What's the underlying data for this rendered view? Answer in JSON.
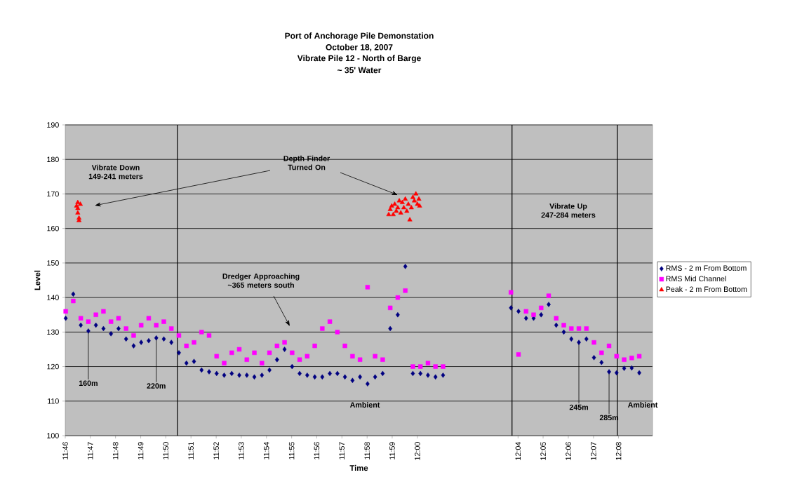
{
  "chart_data": {
    "type": "scatter",
    "title": "Port of Anchorage Pile Demonstation",
    "subtitle": "October 18, 2007",
    "xlabel": "Time",
    "ylabel": "Level",
    "x": [
      11.767,
      11.772,
      11.777,
      11.782,
      11.787,
      11.792,
      11.797,
      11.802,
      11.807,
      11.812,
      11.817,
      11.822,
      11.827,
      11.832,
      11.837,
      11.842,
      11.847,
      11.852,
      11.857,
      11.862,
      11.867,
      11.872,
      11.877,
      11.882,
      11.887,
      11.892,
      11.897,
      11.902,
      11.907,
      11.912,
      11.917,
      11.922,
      11.927,
      11.932,
      11.937,
      11.942,
      11.947,
      11.952,
      11.957,
      11.962,
      11.967,
      11.972,
      11.977,
      11.982,
      11.987,
      11.992,
      11.997,
      12.002,
      12.007,
      12.012,
      12.017,
      12.062,
      12.067,
      12.072,
      12.077,
      12.082,
      12.087,
      12.092,
      12.097,
      12.102,
      12.107,
      12.112,
      12.117,
      12.122,
      12.127,
      12.132,
      12.137,
      12.142,
      12.147
    ],
    "series": [
      {
        "name": "RMS - 2 m From Bottom",
        "color": "#000080",
        "marker": "diamond",
        "values": [
          134,
          141,
          132,
          130.3,
          132,
          131,
          129.5,
          131,
          128,
          126,
          127,
          127.5,
          128.3,
          128,
          127,
          124,
          121,
          121.5,
          119,
          118.5,
          118,
          117.5,
          118,
          117.5,
          117.5,
          117,
          117.5,
          119,
          122,
          125,
          120,
          118,
          117.5,
          117,
          117,
          118,
          118,
          117,
          116,
          117,
          115,
          117,
          118,
          131,
          135,
          149,
          118,
          118,
          117.5,
          117,
          117.5,
          137,
          136,
          134,
          134,
          135,
          138,
          132,
          130,
          128,
          127,
          128,
          122.6,
          121.2,
          118.5,
          118.2,
          119.5,
          119.6,
          118.2
        ]
      },
      {
        "name": "RMS Mid Channel",
        "color": "#ff00ff",
        "marker": "square",
        "values": [
          136,
          139,
          134,
          133,
          135,
          136,
          133,
          134,
          131,
          129,
          132,
          134,
          132,
          133,
          131,
          129,
          126,
          127,
          130,
          129,
          123,
          121,
          124,
          125,
          122,
          124,
          121,
          124,
          126,
          127,
          124,
          122,
          123,
          126,
          131,
          133,
          130,
          126,
          123,
          122,
          143,
          123,
          122,
          137,
          140,
          142,
          120,
          120,
          121,
          120,
          120,
          141.5,
          123.5,
          136,
          135,
          137,
          140.5,
          134,
          132,
          131,
          131,
          131,
          127,
          124,
          126,
          123,
          122,
          122.5,
          123
        ]
      },
      {
        "name": "Peak - 2 m From Bottom",
        "color": "#ff0000",
        "marker": "triangle",
        "x": [
          11.7742,
          11.775,
          11.775,
          11.7758,
          11.7758,
          11.7767,
          11.775,
          11.981,
          11.982,
          11.983,
          11.984,
          11.985,
          11.986,
          11.987,
          11.988,
          11.989,
          11.99,
          11.991,
          11.992,
          11.993,
          11.994,
          11.995,
          11.996,
          11.997,
          11.998,
          11.999,
          12.0,
          12.001,
          12.0015
        ],
        "values": [
          166.5,
          167.5,
          164.5,
          163,
          162.3,
          167,
          165.8,
          164,
          165.5,
          166.5,
          164,
          167,
          165,
          166,
          168,
          164.5,
          167.5,
          166,
          168.5,
          165,
          167,
          162.5,
          166,
          169,
          168,
          170,
          167,
          168.5,
          166.5
        ]
      }
    ],
    "xlim": [
      11.7667,
      12.1558
    ],
    "xticks": [
      {
        "value": 11.7667,
        "label": "11:46"
      },
      {
        "value": 11.7833,
        "label": "11:47"
      },
      {
        "value": 11.8,
        "label": "11:48"
      },
      {
        "value": 11.8167,
        "label": "11:49"
      },
      {
        "value": 11.8333,
        "label": "11:50"
      },
      {
        "value": 11.85,
        "label": "11:51"
      },
      {
        "value": 11.8667,
        "label": "11:52"
      },
      {
        "value": 11.8833,
        "label": "11:53"
      },
      {
        "value": 11.9,
        "label": "11:54"
      },
      {
        "value": 11.9167,
        "label": "11:55"
      },
      {
        "value": 11.9333,
        "label": "11:56"
      },
      {
        "value": 11.95,
        "label": "11:57"
      },
      {
        "value": 11.9667,
        "label": "11:58"
      },
      {
        "value": 11.9833,
        "label": "11:59"
      },
      {
        "value": 12.0,
        "label": "12:00"
      },
      {
        "value": 12.0667,
        "label": "12:04"
      },
      {
        "value": 12.0833,
        "label": "12:05"
      },
      {
        "value": 12.1,
        "label": "12:06"
      },
      {
        "value": 12.1167,
        "label": "12:07"
      },
      {
        "value": 12.1333,
        "label": "12:08"
      }
    ],
    "ylim": [
      100,
      190
    ],
    "yticks": [
      100,
      110,
      120,
      130,
      140,
      150,
      160,
      170,
      180,
      190
    ],
    "grid": "y",
    "legend": "right",
    "ref_lines": [
      {
        "axis": "x",
        "value": 11.841,
        "color": "#000000"
      },
      {
        "axis": "x",
        "value": 12.0627,
        "color": "#000000"
      },
      {
        "axis": "x",
        "value": 12.1325,
        "color": "#000000"
      }
    ],
    "annotations": [
      "Vibrate Down 149-241 meters",
      "Depth Finder Turned On",
      "Dredger Approaching ~365 meters south",
      {
        "text": "160m",
        "x": 11.782,
        "y": 130.3
      },
      {
        "text": "220m",
        "x": 11.827,
        "y": 128.3
      },
      {
        "text": "245m",
        "x": 12.107,
        "y": 127
      },
      {
        "text": "285m",
        "x": 12.127,
        "y": 118.5
      },
      "Ambient",
      "Ambient",
      "Vibrate Up 247-284 meters",
      "Vibrate Pile 12 - North of Barge",
      "~ 35' Water"
    ]
  }
}
